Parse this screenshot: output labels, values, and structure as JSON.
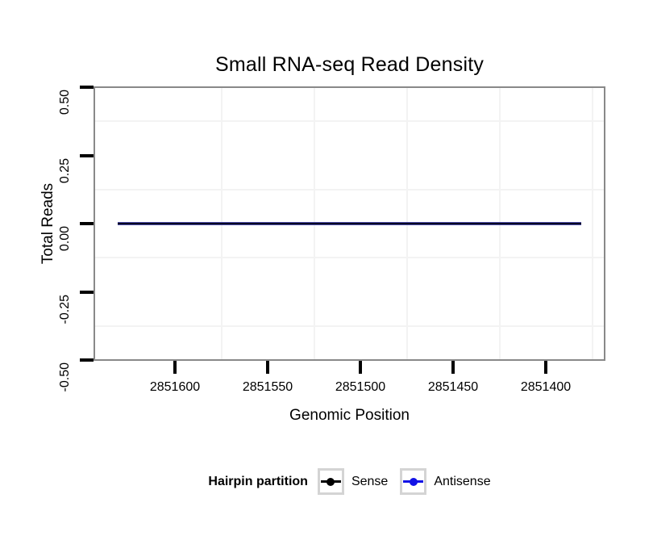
{
  "chart_data": {
    "type": "line",
    "title": "Small RNA-seq Read Density",
    "xlabel": "Genomic Position",
    "ylabel": "Total Reads",
    "x_axis": {
      "reversed": true,
      "ticks": [
        2851600,
        2851550,
        2851500,
        2851450,
        2851400
      ],
      "tick_labels": [
        "2851600",
        "2851550",
        "2851500",
        "2851450",
        "2851400"
      ],
      "range_displayed": [
        2851643,
        2851369
      ],
      "minor_gridlines": [
        2851575,
        2851525,
        2851475,
        2851425,
        2851375
      ]
    },
    "y_axis": {
      "ticks": [
        0.5,
        0.25,
        0,
        -0.25,
        -0.5
      ],
      "tick_labels": [
        "0.50",
        "0.25",
        "0.00",
        "-0.25",
        "-0.50"
      ],
      "range": [
        -0.5,
        0.5
      ],
      "minor_gridlines": [
        0.375,
        0.125,
        -0.125,
        -0.375
      ]
    },
    "grid": "faint minor gridlines only, white panel, gray panel border",
    "series": [
      {
        "name": "Sense",
        "color": "#000000",
        "x_start": 2851631,
        "x_end": 2851381,
        "value": 0
      },
      {
        "name": "Antisense",
        "color": "#1212e6",
        "x_start": 2851631,
        "x_end": 2851381,
        "value": 0
      }
    ],
    "legend": {
      "title": "Hairpin partition",
      "position": "bottom",
      "items": [
        {
          "label": "Sense",
          "color": "#000000"
        },
        {
          "label": "Antisense",
          "color": "#1212e6"
        }
      ]
    },
    "colors": {
      "panel_border": "#898989",
      "gridline": "#f3f3f3",
      "tick": "#000000",
      "legend_key_border": "#d4d4d4",
      "line_core": "#050522",
      "line_halo": "#4c4ca4"
    }
  }
}
